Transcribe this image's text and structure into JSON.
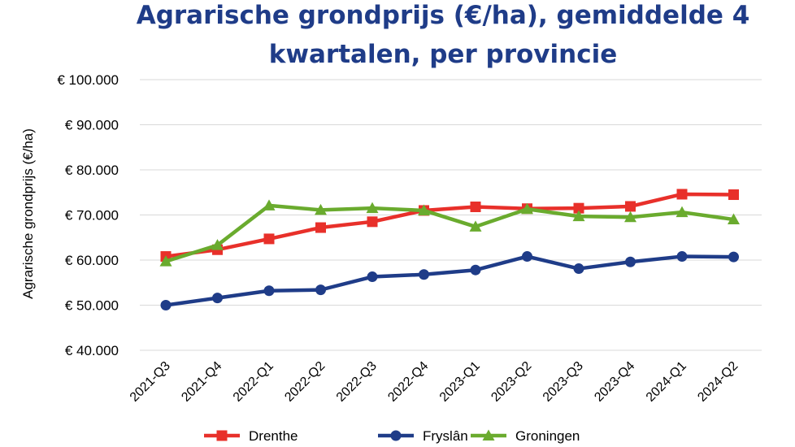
{
  "chart_data": {
    "type": "line",
    "title_lines": [
      "Agrarische grondprijs (€/ha), gemiddelde 4",
      "kwartalen, per provincie"
    ],
    "ylabel": "Agrarische grondprijs (€/ha)",
    "xlabel": "",
    "categories": [
      "2021-Q3",
      "2021-Q4",
      "2022-Q1",
      "2022-Q2",
      "2022-Q3",
      "2022-Q4",
      "2023-Q1",
      "2023-Q2",
      "2023-Q3",
      "2023-Q4",
      "2024-Q1",
      "2024-Q2"
    ],
    "ylim": [
      40000,
      100000
    ],
    "yticks": [
      40000,
      50000,
      60000,
      70000,
      80000,
      90000,
      100000
    ],
    "ytick_labels": [
      "€ 40.000",
      "€ 50.000",
      "€ 60.000",
      "€ 70.000",
      "€ 80.000",
      "€ 90.000",
      "€ 100.000"
    ],
    "grid": true,
    "legend_position": "bottom",
    "series": [
      {
        "name": "Drenthe",
        "color": "#e8302a",
        "marker": "square",
        "values": [
          60800,
          62300,
          64700,
          67200,
          68500,
          71000,
          71800,
          71400,
          71500,
          71900,
          74600,
          74500
        ]
      },
      {
        "name": "Fryslân",
        "color": "#1f3c88",
        "marker": "circle",
        "values": [
          50000,
          51600,
          53200,
          53400,
          56300,
          56800,
          57800,
          60800,
          58100,
          59600,
          60800,
          60700
        ]
      },
      {
        "name": "Groningen",
        "color": "#6aab2e",
        "marker": "triangle",
        "values": [
          59700,
          63300,
          72100,
          71100,
          71500,
          71000,
          67400,
          71300,
          69700,
          69500,
          70600,
          69000
        ]
      }
    ]
  }
}
